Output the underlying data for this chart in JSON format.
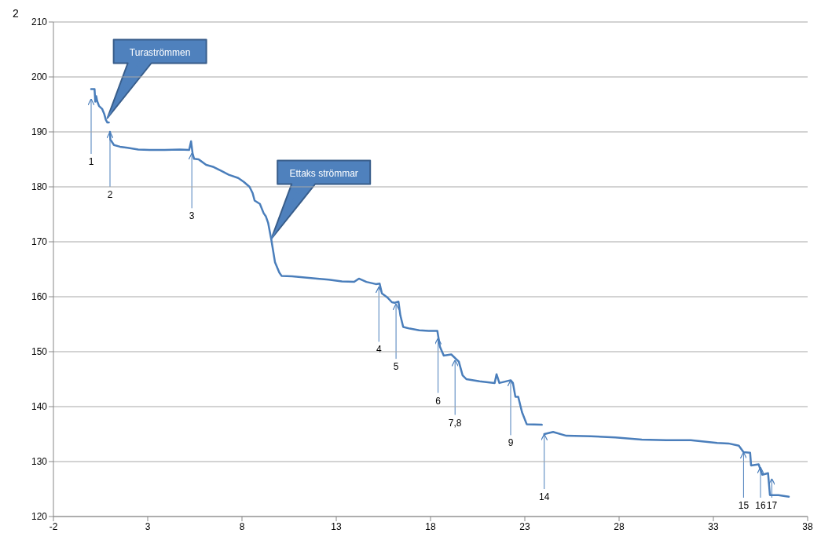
{
  "chart_data": {
    "type": "line",
    "line_style": "solid",
    "marker": "none",
    "grid": "y",
    "xlim": [
      -2,
      38
    ],
    "xticks": [
      -2,
      3,
      8,
      13,
      18,
      23,
      28,
      33,
      38
    ],
    "ylim": [
      120,
      210
    ],
    "yticks": [
      120,
      130,
      140,
      150,
      160,
      170,
      180,
      190,
      200,
      210
    ],
    "series": [
      {
        "color": "#4a7ebb",
        "x": [
          0,
          0.18,
          0.22,
          0.27,
          0.32,
          0.42,
          0.58,
          0.7,
          0.78,
          0.86,
          0.94,
          0.97,
          1.0,
          1.02,
          1.21,
          1.53,
          1.93,
          2.5,
          3.1,
          3.9,
          4.7,
          5.2,
          5.3,
          5.38,
          5.46,
          5.7,
          6.1,
          6.5,
          6.9,
          7.3,
          7.8,
          8.1,
          8.4,
          8.56,
          8.67,
          8.95,
          9.15,
          9.27,
          9.39,
          9.55,
          9.75,
          9.98,
          10.1,
          10.66,
          11.33,
          12.0,
          12.6,
          13.3,
          13.95,
          14.2,
          14.6,
          15.1,
          15.3,
          15.42,
          15.7,
          15.95,
          16.1,
          16.3,
          16.4,
          16.55,
          16.9,
          17.4,
          17.9,
          18.36,
          18.5,
          18.7,
          19.1,
          19.5,
          19.7,
          19.9,
          20.6,
          21.4,
          21.5,
          21.65,
          22.25,
          22.37,
          22.5,
          22.65,
          22.85,
          23.1,
          23.9,
          23.95,
          24.03,
          24.5,
          25.2,
          26.5,
          27.8,
          29.2,
          30.5,
          31.8,
          33.2,
          33.8,
          34.35,
          34.6,
          34.95,
          35.0,
          35.4,
          35.6,
          35.9,
          36.0,
          36.45,
          37.0
        ],
        "values": [
          197.8,
          197.8,
          195.5,
          196.5,
          195.6,
          194.7,
          194.2,
          193.2,
          192.2,
          191.7,
          191.7,
          null,
          190,
          188.6,
          187.6,
          187.3,
          187.1,
          186.8,
          186.7,
          186.7,
          186.8,
          186.7,
          188.3,
          186.1,
          185.1,
          185.0,
          184.0,
          183.6,
          182.9,
          182.2,
          181.6,
          180.9,
          180.0,
          178.9,
          177.5,
          176.9,
          175.2,
          174.6,
          173.4,
          170.5,
          166.3,
          164.4,
          163.8,
          163.7,
          163.5,
          163.3,
          163.1,
          162.8,
          162.7,
          163.3,
          162.7,
          162.3,
          162.4,
          160.6,
          159.9,
          159.0,
          158.9,
          159.1,
          156.6,
          154.5,
          154.2,
          153.9,
          153.8,
          153.8,
          150.9,
          149.3,
          149.5,
          148.2,
          145.7,
          145.0,
          144.6,
          144.3,
          145.9,
          144.3,
          144.8,
          144.3,
          141.8,
          141.8,
          139.0,
          136.8,
          136.7,
          null,
          135.0,
          135.4,
          134.7,
          134.6,
          134.4,
          134.0,
          133.9,
          133.9,
          133.4,
          133.3,
          132.9,
          131.7,
          131.6,
          129.3,
          129.5,
          127.6,
          127.9,
          123.9,
          123.9,
          123.6
        ]
      }
    ],
    "annotations": [
      "2",
      {
        "text": "Turaströmmen",
        "x": 0.86,
        "y": 192.5
      },
      {
        "text": "Ettaks strömmar",
        "x": 9.55,
        "y": 170.5
      },
      {
        "text": "1",
        "x": 0,
        "y": 196
      },
      {
        "text": "2",
        "x": 1.0,
        "y": 190
      },
      {
        "text": "3",
        "x": 5.34,
        "y": 186.1
      },
      {
        "text": "4",
        "x": 15.26,
        "y": 161.8
      },
      {
        "text": "5",
        "x": 16.17,
        "y": 158.7
      },
      {
        "text": "6",
        "x": 18.4,
        "y": 152.5
      },
      {
        "text": "7,8",
        "x": 19.3,
        "y": 148.5
      },
      {
        "text": "9",
        "x": 22.25,
        "y": 144.8
      },
      {
        "text": "14",
        "x": 24.03,
        "y": 135.0
      },
      {
        "text": "15",
        "x": 34.6,
        "y": 131.7
      },
      {
        "text": "16",
        "x": 35.5,
        "y": 129
      },
      {
        "text": "17",
        "x": 36.1,
        "y": 126.9
      }
    ]
  }
}
